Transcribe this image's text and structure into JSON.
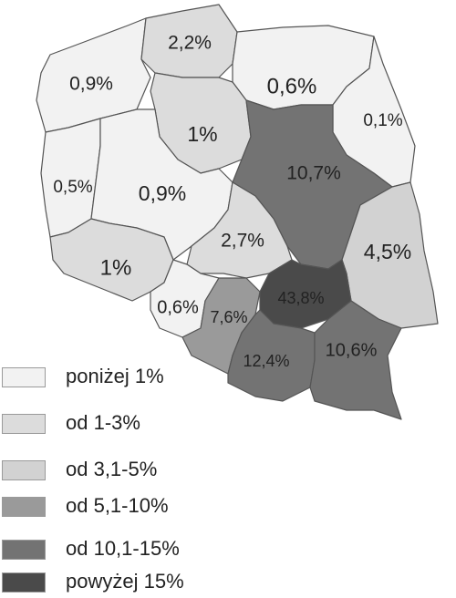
{
  "map": {
    "regions": [
      {
        "id": "zachodniopomorskie",
        "label": "0,9%",
        "category": 0
      },
      {
        "id": "pomorskie",
        "label": "2,2%",
        "category": 1
      },
      {
        "id": "warminsko-mazurskie",
        "label": "0,6%",
        "category": 0
      },
      {
        "id": "podlaskie",
        "label": "0,1%",
        "category": 0
      },
      {
        "id": "kujawsko-pomorskie",
        "label": "1%",
        "category": 1
      },
      {
        "id": "lubuskie",
        "label": "0,5%",
        "category": 0
      },
      {
        "id": "wielkopolskie",
        "label": "0,9%",
        "category": 0
      },
      {
        "id": "mazowieckie",
        "label": "10,7%",
        "category": 4
      },
      {
        "id": "lodzkie",
        "label": "2,7%",
        "category": 1
      },
      {
        "id": "lubelskie",
        "label": "4,5%",
        "category": 2
      },
      {
        "id": "dolnoslaskie",
        "label": "1%",
        "category": 1
      },
      {
        "id": "opolskie",
        "label": "0,6%",
        "category": 0
      },
      {
        "id": "slaskie",
        "label": "7,6%",
        "category": 3
      },
      {
        "id": "swietokrzyskie",
        "label": "43,8%",
        "category": 5
      },
      {
        "id": "malopolskie",
        "label": "12,4%",
        "category": 4
      },
      {
        "id": "podkarpackie",
        "label": "10,6%",
        "category": 4
      }
    ]
  },
  "legend": {
    "items": [
      {
        "label": "poniżej 1%",
        "color": "#f2f2f2"
      },
      {
        "label": "od 1-3%",
        "color": "#dcdcdc"
      },
      {
        "label": "od 3,1-5%",
        "color": "#d2d2d2"
      },
      {
        "label": "od 5,1-10%",
        "color": "#9a9a9a"
      },
      {
        "label": "od 10,1-15%",
        "color": "#737373"
      },
      {
        "label": "powyżej 15%",
        "color": "#4a4a4a"
      }
    ]
  }
}
